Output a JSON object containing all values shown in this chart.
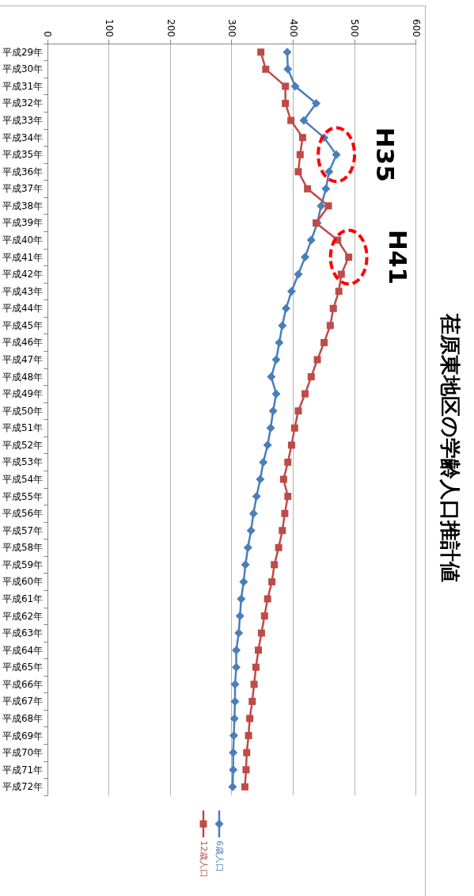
{
  "chart_data": {
    "type": "line",
    "orientation": "horizontal",
    "title": "荏原東地区の学齢人口推計値",
    "categories": [
      "平成29年",
      "平成30年",
      "平成31年",
      "平成32年",
      "平成33年",
      "平成34年",
      "平成35年",
      "平成36年",
      "平成37年",
      "平成38年",
      "平成39年",
      "平成40年",
      "平成41年",
      "平成42年",
      "平成43年",
      "平成44年",
      "平成45年",
      "平成46年",
      "平成47年",
      "平成48年",
      "平成49年",
      "平成50年",
      "平成51年",
      "平成52年",
      "平成53年",
      "平成54年",
      "平成55年",
      "平成56年",
      "平成57年",
      "平成58年",
      "平成59年",
      "平成60年",
      "平成61年",
      "平成62年",
      "平成63年",
      "平成64年",
      "平成65年",
      "平成66年",
      "平成67年",
      "平成68年",
      "平成69年",
      "平成70年",
      "平成71年",
      "平成72年"
    ],
    "series": [
      {
        "name": "6歳人口",
        "color": "#4a7ebb",
        "marker": "diamond",
        "values": [
          390,
          391,
          403,
          437,
          417,
          450,
          470,
          458,
          453,
          445,
          439,
          429,
          419,
          408,
          397,
          388,
          382,
          377,
          372,
          364,
          372,
          367,
          363,
          358,
          351,
          346,
          340,
          335,
          331,
          326,
          322,
          319,
          315,
          313,
          311,
          307,
          307,
          305,
          305,
          304,
          303,
          302,
          302,
          301
        ]
      },
      {
        "name": "12歳人口",
        "color": "#be4b48",
        "marker": "square",
        "values": [
          347,
          355,
          387,
          387,
          396,
          415,
          411,
          408,
          423,
          457,
          437,
          472,
          490,
          478,
          474,
          465,
          460,
          450,
          439,
          429,
          419,
          408,
          402,
          397,
          391,
          384,
          391,
          386,
          382,
          376,
          369,
          365,
          358,
          353,
          348,
          343,
          339,
          336,
          333,
          329,
          327,
          324,
          323,
          321
        ]
      }
    ],
    "xlim": [
      0,
      600
    ],
    "xticks": [
      0,
      100,
      200,
      300,
      400,
      500,
      600
    ],
    "grid": "x",
    "legend": "bottom",
    "line_style": "solid",
    "annotations": [
      {
        "text": "H35",
        "x": 470,
        "y": "平成35年"
      },
      {
        "text": "H41",
        "x": 490,
        "y": "平成41年"
      }
    ]
  }
}
